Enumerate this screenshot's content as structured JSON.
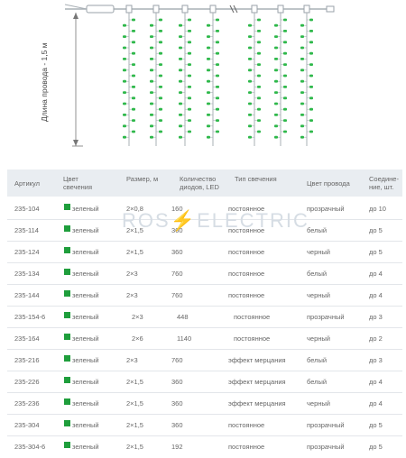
{
  "illustration": {
    "axis_label": "Длина провода - 1,5 м",
    "led_color": "#2eb84a",
    "wire_color": "#a9b0b6"
  },
  "watermark": {
    "left": "ROS",
    "bolt": "⚡",
    "right": "ELECTRIC"
  },
  "table": {
    "header_bg": "#e9edf1",
    "swatch_color": "#1f9e3c",
    "columns": [
      "Артикул",
      "Цвет свечения",
      "Размер, м",
      "Количество диодов, LED",
      "Тип свечения",
      "Цвет провода",
      "Соеди­не­ние, шт."
    ],
    "rows": [
      [
        "235-104",
        "зеленый",
        "2×0,8",
        "160",
        "постоянное",
        "прозрачный",
        "до 10"
      ],
      [
        "235-114",
        "зеленый",
        "2×1,5",
        "360",
        "постоянное",
        "белый",
        "до 5"
      ],
      [
        "235-124",
        "зеленый",
        "2×1,5",
        "360",
        "постоянное",
        "черный",
        "до 5"
      ],
      [
        "235-134",
        "зеленый",
        "2×3",
        "760",
        "постоянное",
        "белый",
        "до 4"
      ],
      [
        "235-144",
        "зеленый",
        "2×3",
        "760",
        "постоянное",
        "черный",
        "до 4"
      ],
      [
        "235-154-6",
        "зеленый",
        "2×3",
        "448",
        "постоянное",
        "прозрачный",
        "до 3"
      ],
      [
        "235-164",
        "зеленый",
        "2×6",
        "1140",
        "постоянное",
        "черный",
        "до 2"
      ],
      [
        "235-216",
        "зеленый",
        "2×3",
        "760",
        "эффект мерцания",
        "белый",
        "до 3"
      ],
      [
        "235-226",
        "зеленый",
        "2×1,5",
        "360",
        "эффект мерцания",
        "белый",
        "до 4"
      ],
      [
        "235-236",
        "зеленый",
        "2×1,5",
        "360",
        "эффект мерцания",
        "черный",
        "до 4"
      ],
      [
        "235-304",
        "зеленый",
        "2×1,5",
        "360",
        "постоянное",
        "прозрачный",
        "до 5"
      ],
      [
        "235-304-6",
        "зеленый",
        "2×1,5",
        "192",
        "постоянное",
        "прозрачный",
        "до 5"
      ]
    ]
  }
}
